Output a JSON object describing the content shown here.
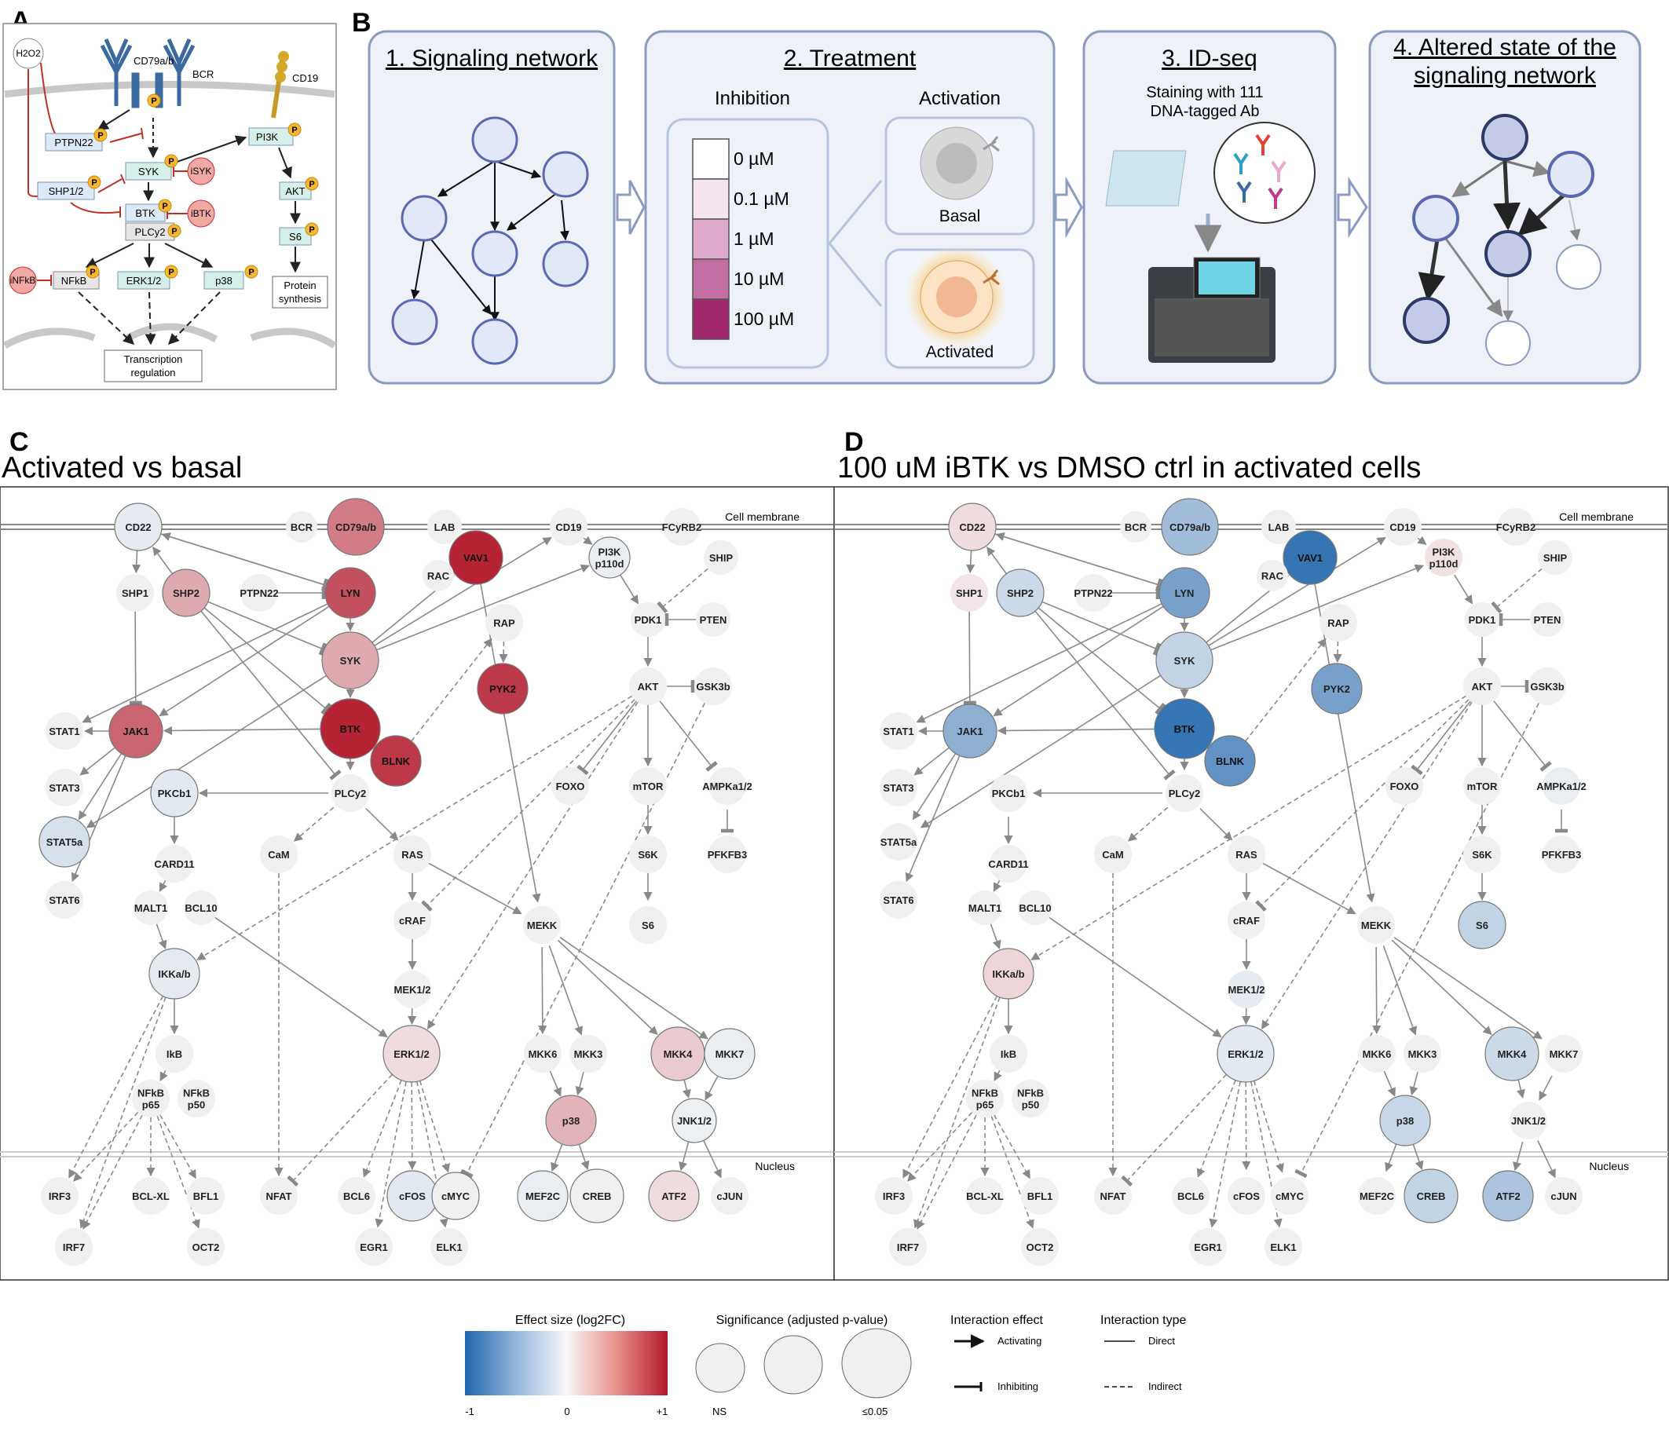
{
  "panels": {
    "A": {
      "letter": "A"
    },
    "B": {
      "letter": "B"
    },
    "C": {
      "letter": "C",
      "title": "Activated vs basal"
    },
    "D": {
      "letter": "D",
      "title": "100 uM iBTK vs DMSO ctrl in activated cells"
    }
  },
  "panelA": {
    "h2o2": "H2O2",
    "bcr": "BCR",
    "cd79": "CD79a/b",
    "cd19": "CD19",
    "pi3k": "PI3K",
    "ptpn22": "PTPN22",
    "syk": "SYK",
    "isyk": "iSYK",
    "shp": "SHP1/2",
    "btk": "BTK",
    "ibtk": "iBTK",
    "plcy2": "PLCy2",
    "akt": "AKT",
    "s6": "S6",
    "infkb": "iNFkB",
    "nfkb": "NFkB",
    "erk": "ERK1/2",
    "p38": "p38",
    "protein": [
      "Protein",
      "synthesis"
    ],
    "transcription": [
      "Transcription",
      "regulation"
    ],
    "p": "P"
  },
  "panelB": {
    "step1": "1. Signaling network",
    "step2": "2. Treatment",
    "step3": "3. ID-seq",
    "step4": [
      "4. Altered state of the",
      "signaling network"
    ],
    "inhibition": "Inhibition",
    "activation": "Activation",
    "doses": [
      "0 µM",
      "0.1 µM",
      "1 µM",
      "10 µM",
      "100 µM"
    ],
    "dose_colors": [
      "#ffffff",
      "#f4e4ee",
      "#dfaacb",
      "#c26ea2",
      "#a3296d"
    ],
    "basal": "Basal",
    "activated": "Activated",
    "staining": [
      "Staining with 111",
      "DNA-tagged Ab"
    ]
  },
  "network": {
    "cell_membrane": "Cell membrane",
    "nucleus": "Nucleus"
  },
  "nodes": [
    {
      "id": "CD22",
      "label": "CD22"
    },
    {
      "id": "BCR",
      "label": "BCR"
    },
    {
      "id": "CD79",
      "label": "CD79a/b"
    },
    {
      "id": "LAB",
      "label": "LAB"
    },
    {
      "id": "CD19",
      "label": "CD19"
    },
    {
      "id": "FCYRB2",
      "label": "FCyRB2"
    },
    {
      "id": "VAV1",
      "label": "VAV1"
    },
    {
      "id": "RAC",
      "label": "RAC"
    },
    {
      "id": "PI3K",
      "label": "PI3K p110d"
    },
    {
      "id": "SHIP",
      "label": "SHIP"
    },
    {
      "id": "SHP1",
      "label": "SHP1"
    },
    {
      "id": "SHP2",
      "label": "SHP2"
    },
    {
      "id": "PTPN22",
      "label": "PTPN22"
    },
    {
      "id": "LYN",
      "label": "LYN"
    },
    {
      "id": "RAP",
      "label": "RAP"
    },
    {
      "id": "PDK1",
      "label": "PDK1"
    },
    {
      "id": "PTEN",
      "label": "PTEN"
    },
    {
      "id": "SYK",
      "label": "SYK"
    },
    {
      "id": "PYK2",
      "label": "PYK2"
    },
    {
      "id": "AKT",
      "label": "AKT"
    },
    {
      "id": "GSK3B",
      "label": "GSK3b"
    },
    {
      "id": "STAT1",
      "label": "STAT1"
    },
    {
      "id": "JAK1",
      "label": "JAK1"
    },
    {
      "id": "BTK",
      "label": "BTK"
    },
    {
      "id": "BLNK",
      "label": "BLNK"
    },
    {
      "id": "STAT3",
      "label": "STAT3"
    },
    {
      "id": "PKCB1",
      "label": "PKCb1"
    },
    {
      "id": "PLCY2",
      "label": "PLCy2"
    },
    {
      "id": "FOXO",
      "label": "FOXO"
    },
    {
      "id": "MTOR",
      "label": "mTOR"
    },
    {
      "id": "AMPK",
      "label": "AMPKa1/2"
    },
    {
      "id": "STAT5A",
      "label": "STAT5a"
    },
    {
      "id": "CAM",
      "label": "CaM"
    },
    {
      "id": "RAS",
      "label": "RAS"
    },
    {
      "id": "S6K",
      "label": "S6K"
    },
    {
      "id": "PFKFB3",
      "label": "PFKFB3"
    },
    {
      "id": "CARD11",
      "label": "CARD11"
    },
    {
      "id": "STAT6",
      "label": "STAT6"
    },
    {
      "id": "MALT1",
      "label": "MALT1"
    },
    {
      "id": "BCL10",
      "label": "BCL10"
    },
    {
      "id": "CRAF",
      "label": "cRAF"
    },
    {
      "id": "MEKK",
      "label": "MEKK"
    },
    {
      "id": "S6",
      "label": "S6"
    },
    {
      "id": "IKK",
      "label": "IKKa/b"
    },
    {
      "id": "MEK12",
      "label": "MEK1/2"
    },
    {
      "id": "IKB",
      "label": "IkB"
    },
    {
      "id": "ERK12",
      "label": "ERK1/2"
    },
    {
      "id": "MKK6",
      "label": "MKK6"
    },
    {
      "id": "MKK3",
      "label": "MKK3"
    },
    {
      "id": "MKK4",
      "label": "MKK4"
    },
    {
      "id": "MKK7",
      "label": "MKK7"
    },
    {
      "id": "NFKB65",
      "label": "NFkB p65"
    },
    {
      "id": "NFKB50",
      "label": "NFkB p50"
    },
    {
      "id": "P38",
      "label": "p38"
    },
    {
      "id": "JNK12",
      "label": "JNK1/2"
    },
    {
      "id": "IRF3",
      "label": "IRF3"
    },
    {
      "id": "BCLXL",
      "label": "BCL-XL"
    },
    {
      "id": "BFL1",
      "label": "BFL1"
    },
    {
      "id": "NFAT",
      "label": "NFAT"
    },
    {
      "id": "BCL6",
      "label": "BCL6"
    },
    {
      "id": "CFOS",
      "label": "cFOS"
    },
    {
      "id": "CMYC",
      "label": "cMYC"
    },
    {
      "id": "MEF2C",
      "label": "MEF2C"
    },
    {
      "id": "CREB",
      "label": "CREB"
    },
    {
      "id": "ATF2",
      "label": "ATF2"
    },
    {
      "id": "CJUN",
      "label": "cJUN"
    },
    {
      "id": "IRF7",
      "label": "IRF7"
    },
    {
      "id": "OCT2",
      "label": "OCT2"
    },
    {
      "id": "EGR1",
      "label": "EGR1"
    },
    {
      "id": "ELK1",
      "label": "ELK1"
    }
  ],
  "effects_C": {
    "CD79": 0.55,
    "VAV1": 0.95,
    "LYN": 0.75,
    "SYK": 0.35,
    "BTK": 0.95,
    "BLNK": 0.85,
    "SHP2": 0.35,
    "PYK2": 0.85,
    "JAK1": 0.65,
    "MKK4": 0.2,
    "P38": 0.3,
    "ATF2": 0.12,
    "ERK12": 0.12,
    "CD22": -0.08,
    "PI3K": -0.06,
    "PKCB1": -0.1,
    "STAT5A": -0.15,
    "IKK": -0.08,
    "CFOS": -0.1,
    "MKK7": -0.06,
    "MEF2C": -0.06,
    "JNK12": -0.05
  },
  "significance_C": [
    "CD22",
    "CD79",
    "VAV1",
    "PI3K",
    "SHP2",
    "LYN",
    "SYK",
    "PYK2",
    "JAK1",
    "BTK",
    "BLNK",
    "PKCB1",
    "STAT5A",
    "IKK",
    "ERK12",
    "MKK4",
    "MKK7",
    "P38",
    "MEF2C",
    "CREB",
    "ATF2",
    "CFOS",
    "CMYC",
    "JNK12"
  ],
  "effects_D": {
    "CD22": 0.12,
    "CD79": -0.4,
    "VAV1": -0.9,
    "PI3K": 0.1,
    "SHP1": 0.08,
    "SHP2": -0.2,
    "LYN": -0.6,
    "SYK": -0.25,
    "PYK2": -0.6,
    "JAK1": -0.5,
    "BTK": -0.9,
    "BLNK": -0.7,
    "AMPK": -0.06,
    "S6": -0.25,
    "IKK": 0.15,
    "MEK12": -0.08,
    "ERK12": -0.1,
    "MKK4": -0.2,
    "P38": -0.22,
    "CREB": -0.25,
    "ATF2": -0.35
  },
  "significance_D": [
    "CD22",
    "CD79",
    "VAV1",
    "SHP2",
    "LYN",
    "SYK",
    "PYK2",
    "JAK1",
    "BTK",
    "BLNK",
    "S6",
    "IKK",
    "ERK12",
    "MKK4",
    "P38",
    "CREB",
    "ATF2"
  ],
  "legend": {
    "effect_title": "Effect size (log2FC)",
    "effect_ticks": [
      "-1",
      "0",
      "+1"
    ],
    "sig_title": "Significance (adjusted p-value)",
    "sig_ns": "NS",
    "sig_max": "≤0.05",
    "interaction_effect": "Interaction effect",
    "activating": "Activating",
    "inhibiting": "Inhibiting",
    "interaction_type": "Interaction type",
    "direct": "Direct",
    "indirect": "Indirect"
  },
  "colors": {
    "positive": "#b2182b",
    "negative": "#2166ac",
    "neutral_node": "#f0f0f0",
    "panel_frame": "#8c9bbf",
    "panel_fill": "#eef1f7",
    "b_node": "#e3e8f8",
    "b_node_stroke": "#5b6ab0"
  }
}
